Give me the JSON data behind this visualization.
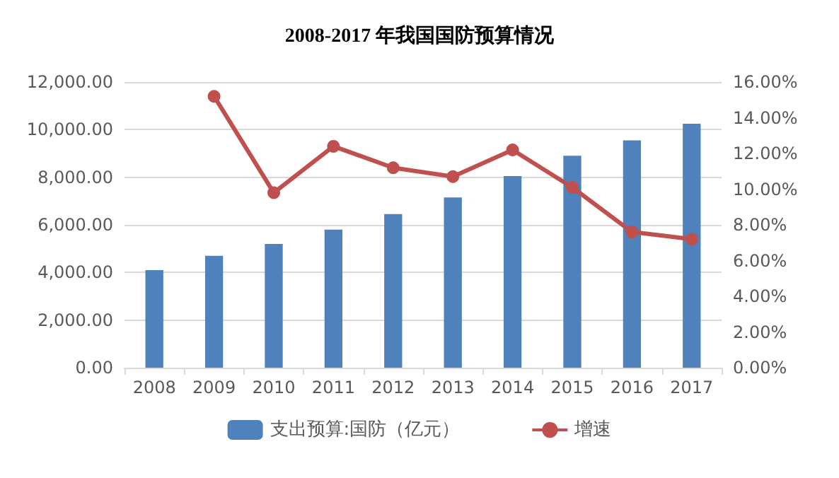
{
  "chart_data": {
    "type": "bar",
    "title": "2008-2017 年我国国防预算情况",
    "categories": [
      "2008",
      "2009",
      "2010",
      "2011",
      "2012",
      "2013",
      "2014",
      "2015",
      "2016",
      "2017"
    ],
    "series": [
      {
        "name": "支出预算:国防（亿元）",
        "color": "#4f81bd",
        "values": [
          4100,
          4700,
          5200,
          5800,
          6450,
          7150,
          8050,
          8900,
          9550,
          10250
        ]
      },
      {
        "name": "增速",
        "type": "line",
        "axis": "y2",
        "color": "#c0504d",
        "marker": "circle",
        "values": [
          null,
          15.2,
          9.8,
          12.4,
          11.2,
          10.7,
          12.2,
          10.1,
          7.6,
          7.2
        ]
      }
    ],
    "ylim": [
      0,
      12000
    ],
    "yticks": [
      {
        "value": 0,
        "label": "0.00"
      },
      {
        "value": 2000,
        "label": "2,000.00"
      },
      {
        "value": 4000,
        "label": "4,000.00"
      },
      {
        "value": 6000,
        "label": "6,000.00"
      },
      {
        "value": 8000,
        "label": "8,000.00"
      },
      {
        "value": 10000,
        "label": "10,000.00"
      },
      {
        "value": 12000,
        "label": "12,000.00"
      }
    ],
    "y2lim": [
      0,
      16
    ],
    "y2ticks": [
      {
        "value": 0,
        "label": "0.00%"
      },
      {
        "value": 2,
        "label": "2.00%"
      },
      {
        "value": 4,
        "label": "4.00%"
      },
      {
        "value": 6,
        "label": "6.00%"
      },
      {
        "value": 8,
        "label": "8.00%"
      },
      {
        "value": 10,
        "label": "10.00%"
      },
      {
        "value": 12,
        "label": "12.00%"
      },
      {
        "value": 14,
        "label": "14.00%"
      },
      {
        "value": 16,
        "label": "16.00%"
      }
    ],
    "grid": "y",
    "legend": "bottom"
  }
}
